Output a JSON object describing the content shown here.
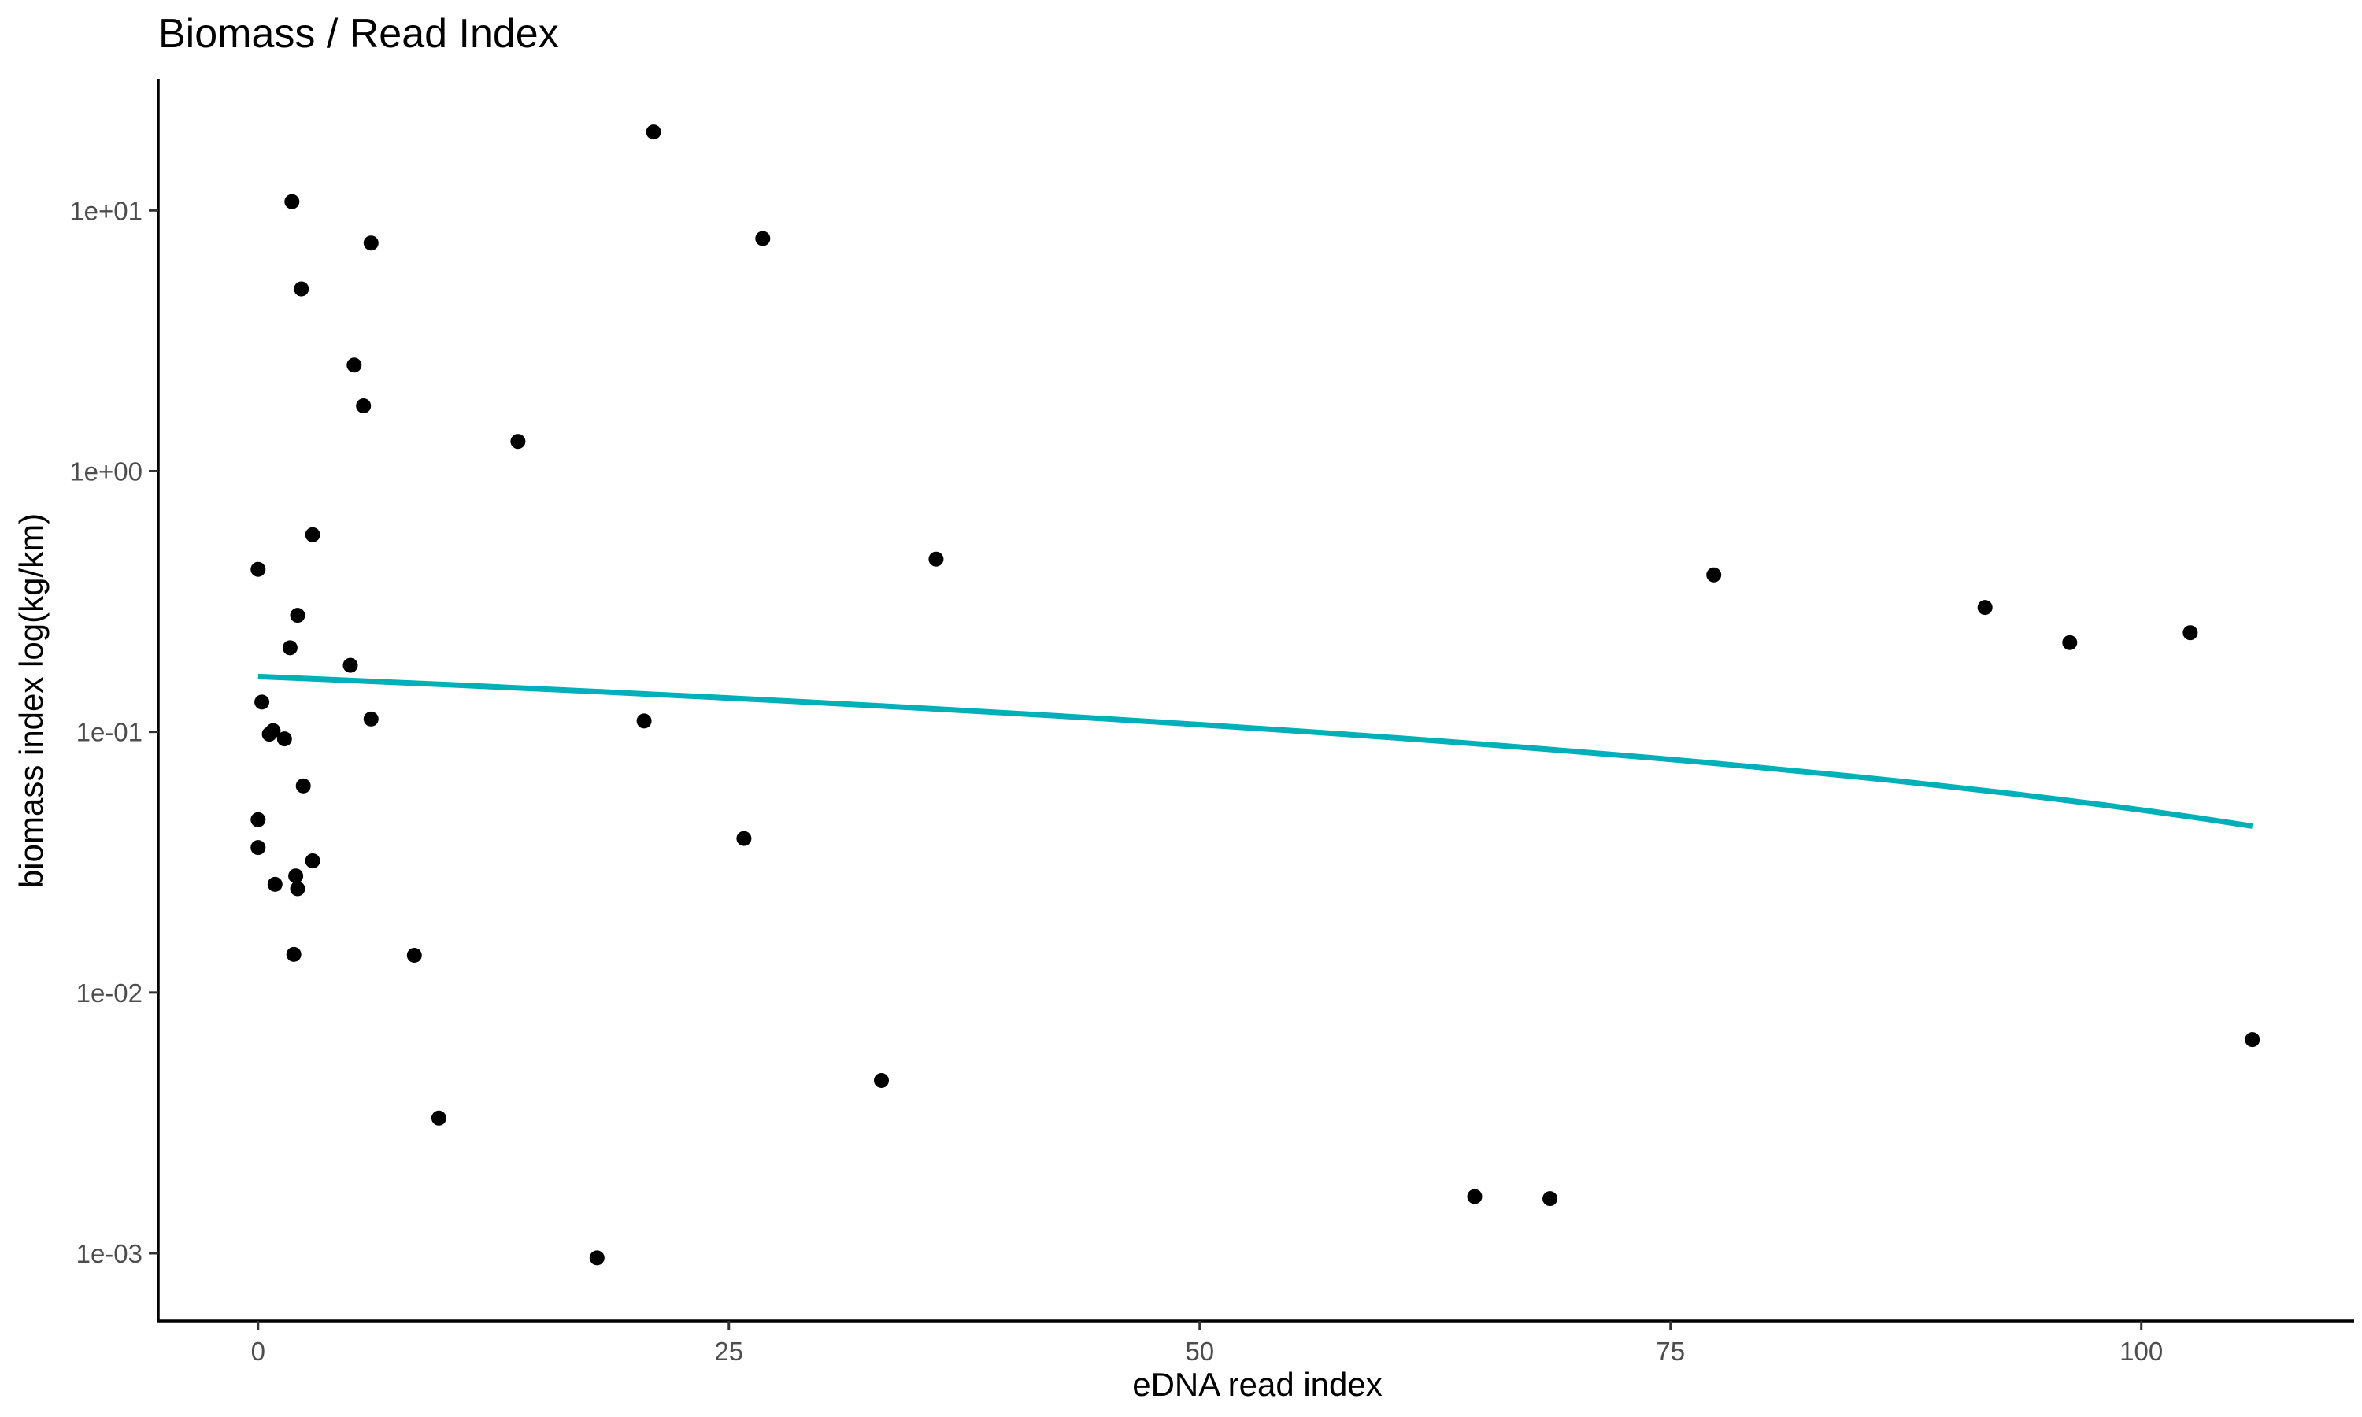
{
  "chart_data": {
    "type": "scatter",
    "title": "Biomass / Read Index",
    "xlabel": "eDNA read index",
    "ylabel": "biomass index log(kg/km)",
    "y_scale": "log10",
    "xlim": [
      -5.3,
      111.3
    ],
    "ylim": [
      0.00055,
      32
    ],
    "x_ticks": [
      0,
      25,
      50,
      75,
      100
    ],
    "x_tick_labels": [
      "0",
      "25",
      "50",
      "75",
      "100"
    ],
    "y_ticks": [
      0.001,
      0.01,
      0.1,
      1,
      10
    ],
    "y_tick_labels": [
      "1e-03",
      "1e-02",
      "1e-01",
      "1e+00",
      "1e+01"
    ],
    "grid": false,
    "legend": "none",
    "point_color": "#000000",
    "trend_color": "#00B0B9",
    "points": [
      {
        "x": 21.0,
        "y": 20.0
      },
      {
        "x": 1.8,
        "y": 10.8
      },
      {
        "x": 26.8,
        "y": 7.8
      },
      {
        "x": 6.0,
        "y": 7.5
      },
      {
        "x": 2.3,
        "y": 5.0
      },
      {
        "x": 5.1,
        "y": 2.55
      },
      {
        "x": 5.6,
        "y": 1.78
      },
      {
        "x": 13.8,
        "y": 1.3
      },
      {
        "x": 2.9,
        "y": 0.57
      },
      {
        "x": 36.0,
        "y": 0.46
      },
      {
        "x": 0.0,
        "y": 0.42
      },
      {
        "x": 77.3,
        "y": 0.4
      },
      {
        "x": 91.7,
        "y": 0.3
      },
      {
        "x": 2.1,
        "y": 0.28
      },
      {
        "x": 102.6,
        "y": 0.24
      },
      {
        "x": 96.2,
        "y": 0.22
      },
      {
        "x": 1.7,
        "y": 0.21
      },
      {
        "x": 4.9,
        "y": 0.18
      },
      {
        "x": 0.2,
        "y": 0.13
      },
      {
        "x": 6.0,
        "y": 0.112
      },
      {
        "x": 20.5,
        "y": 0.11
      },
      {
        "x": 0.8,
        "y": 0.101
      },
      {
        "x": 0.6,
        "y": 0.098
      },
      {
        "x": 1.4,
        "y": 0.094
      },
      {
        "x": 2.4,
        "y": 0.062
      },
      {
        "x": 0.0,
        "y": 0.046
      },
      {
        "x": 25.8,
        "y": 0.039
      },
      {
        "x": 0.0,
        "y": 0.036
      },
      {
        "x": 2.9,
        "y": 0.032
      },
      {
        "x": 2.0,
        "y": 0.028
      },
      {
        "x": 0.9,
        "y": 0.026
      },
      {
        "x": 2.1,
        "y": 0.025
      },
      {
        "x": 1.9,
        "y": 0.014
      },
      {
        "x": 8.3,
        "y": 0.0139
      },
      {
        "x": 105.9,
        "y": 0.0066
      },
      {
        "x": 33.1,
        "y": 0.0046
      },
      {
        "x": 9.6,
        "y": 0.0033
      },
      {
        "x": 64.6,
        "y": 0.00165
      },
      {
        "x": 68.6,
        "y": 0.00162
      },
      {
        "x": 18.0,
        "y": 0.00096
      }
    ],
    "trend_line": {
      "x": [
        0.0,
        105.9
      ],
      "y": [
        0.163,
        0.0435
      ]
    }
  }
}
